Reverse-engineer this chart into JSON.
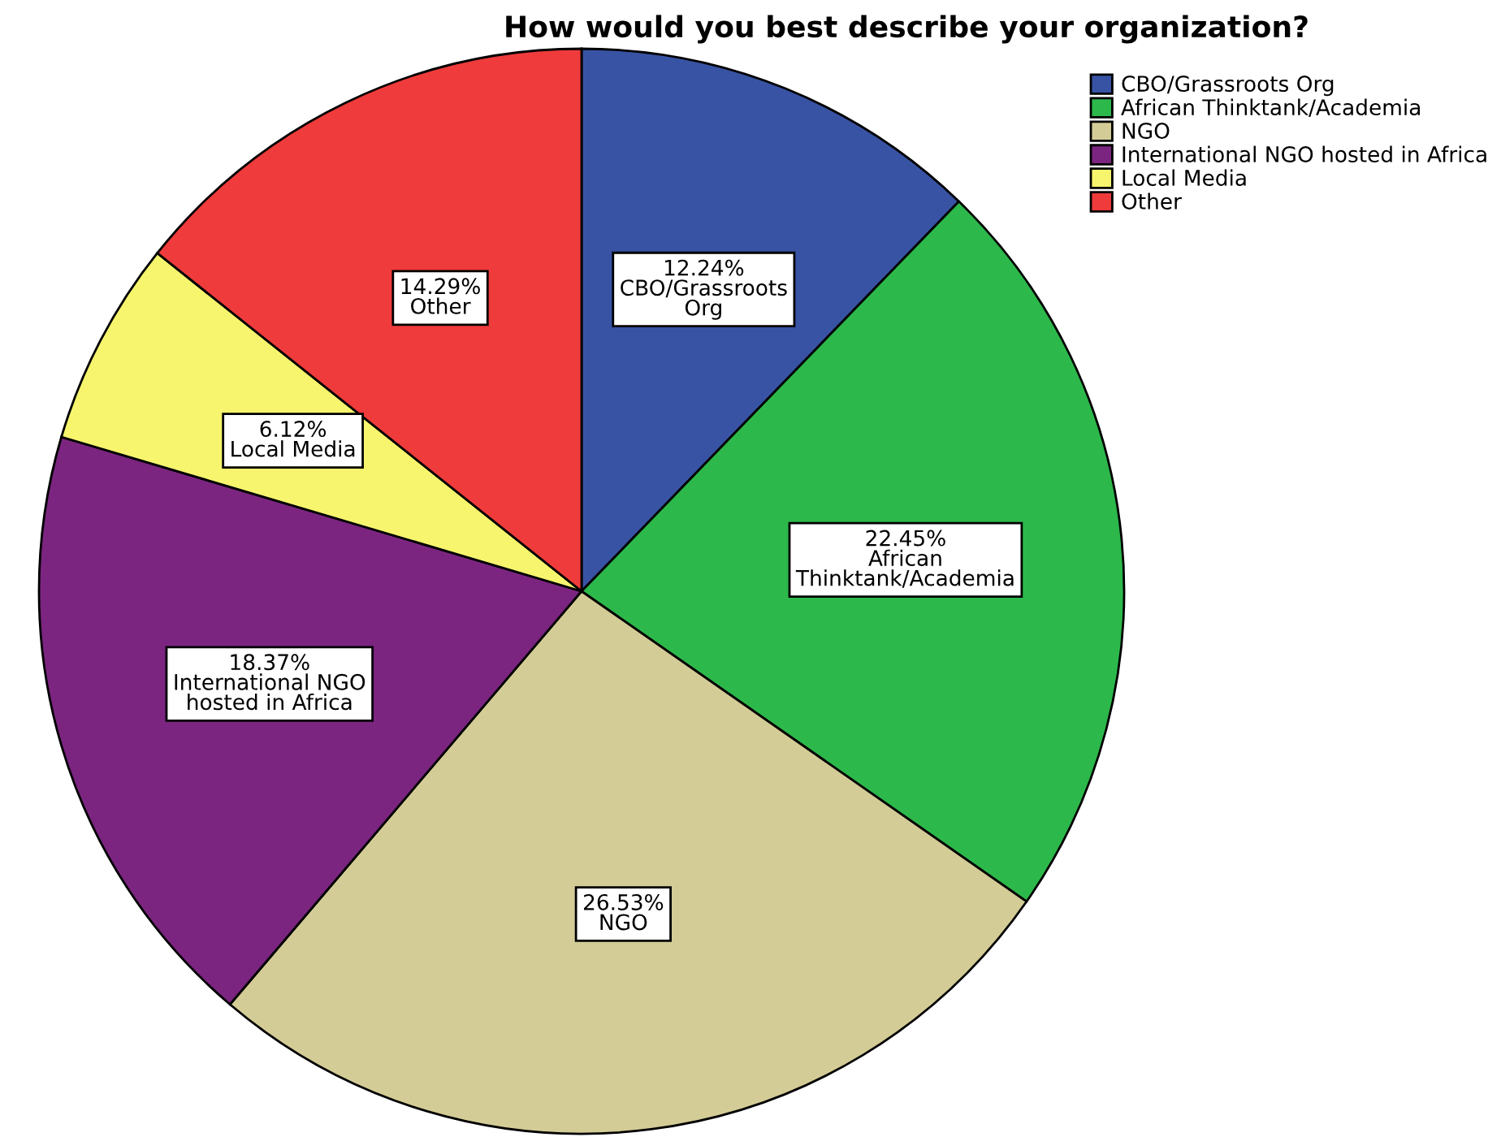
{
  "chart_data": {
    "type": "pie",
    "title": "How would you best describe your organization?",
    "categories": [
      "CBO/Grassroots Org",
      "African Thinktank/Academia",
      "NGO",
      "International NGO hosted in Africa",
      "Local Media",
      "Other"
    ],
    "values": [
      12.24,
      22.45,
      26.53,
      18.37,
      6.12,
      14.29
    ],
    "value_labels": [
      "12.24%\nCBO/Grassroots\nOrg",
      "22.45%\nAfrican\nThinktank/Academia",
      "26.53%\nNGO",
      "18.37%\nInternational NGO\nhosted in Africa",
      "6.12%\nLocal Media",
      "14.29%\nOther"
    ],
    "colors": [
      "#3953a4",
      "#2db84b",
      "#d4cc96",
      "#7b2580",
      "#f7f56d",
      "#ef3b3b"
    ],
    "legend": "top right"
  }
}
